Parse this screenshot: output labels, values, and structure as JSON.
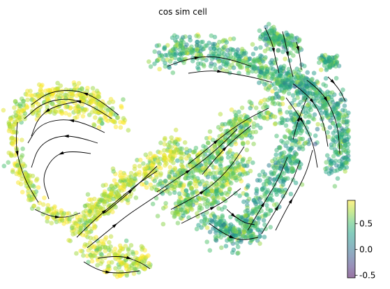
{
  "chart_data": {
    "type": "scatter",
    "title": "cos sim cell",
    "xlabel": "",
    "ylabel": "",
    "grid": false,
    "overlay": "velocity streamlines with arrowheads",
    "colorbar": {
      "label": "",
      "min": -0.55,
      "max": 0.95,
      "ticks": [
        0.5,
        0.0,
        -0.5
      ],
      "tick_labels": [
        "0.5",
        "0.0",
        "-0.5"
      ],
      "colormap": "viridis (semi-transparent)",
      "placement": "bottom-right"
    },
    "clusters": [
      {
        "name": "left loop",
        "approx_value": 0.85
      },
      {
        "name": "bottom-center",
        "approx_value": 0.82
      },
      {
        "name": "middle band",
        "approx_value": 0.62
      },
      {
        "name": "top cluster",
        "approx_value": 0.45
      },
      {
        "name": "right cluster",
        "approx_value": 0.4
      },
      {
        "name": "lower-right band",
        "approx_value": 0.4
      }
    ]
  },
  "colors": {
    "viridis_stops": [
      "#440154",
      "#46327e",
      "#365c8d",
      "#277f8e",
      "#1fa187",
      "#4ac16d",
      "#a0da39",
      "#fde725"
    ],
    "stream": "#000000",
    "axis": "#000000"
  }
}
